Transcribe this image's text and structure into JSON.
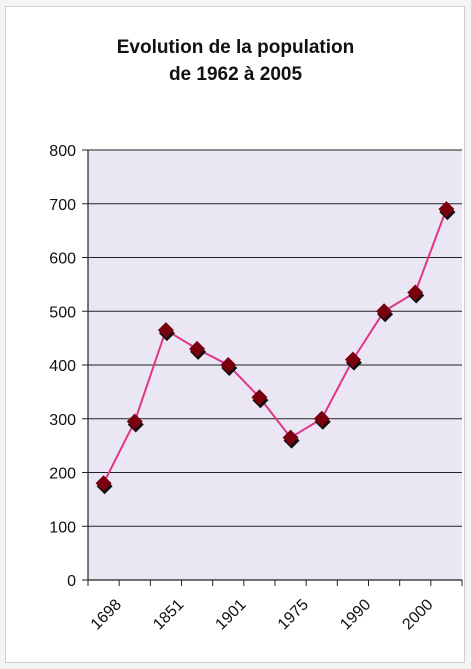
{
  "chart_data": {
    "type": "line",
    "title": [
      "Evolution de la population",
      "de 1962 à 2005"
    ],
    "xlabel": "",
    "ylabel": "",
    "x_tick_labels": [
      "1698",
      "1851",
      "1901",
      "1975",
      "1990",
      "2000"
    ],
    "ylim": [
      0,
      800
    ],
    "y_ticks": [
      0,
      100,
      200,
      300,
      400,
      500,
      600,
      700,
      800
    ],
    "grid": true,
    "legend": "none",
    "series": [
      {
        "values": [
          180,
          295,
          465,
          430,
          400,
          340,
          265,
          300,
          410,
          500,
          535,
          690
        ]
      }
    ],
    "colors": {
      "line": "#e0368a",
      "marker": "#7a0010",
      "plot_bg": "#eae6f3",
      "gridline": "#222222"
    }
  }
}
